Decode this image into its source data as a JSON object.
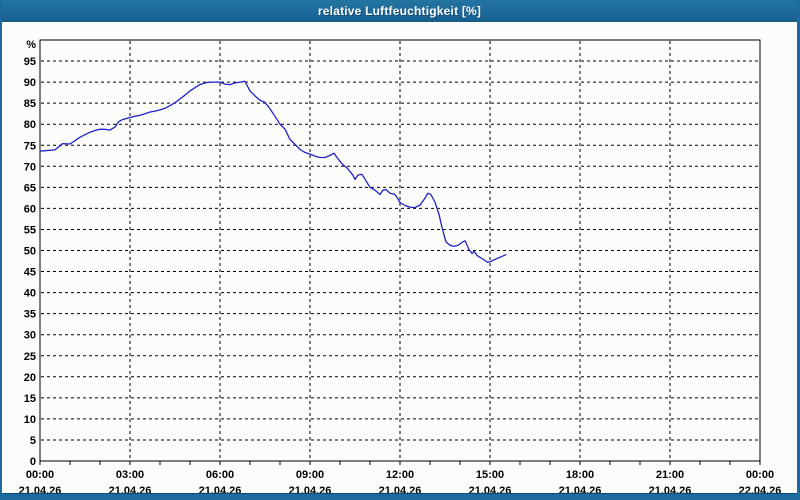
{
  "window": {
    "title": "relative Luftfeuchtigkeit [%]"
  },
  "colors": {
    "titlebar": "#1d6a9e",
    "frame": "#1d6a9e",
    "background": "#fcfdfa",
    "grid": "#000000",
    "plot_border": "#000000",
    "tick_text": "#000000",
    "title_text": "#ffffff",
    "series_line": "#2121c8"
  },
  "chart_data": {
    "type": "line",
    "title": "relative Luftfeuchtigkeit [%]",
    "ylabel": "%",
    "xlabel": "",
    "ylim": [
      0,
      100
    ],
    "xlim_hours": [
      0,
      24
    ],
    "grid": "dashed",
    "legend": "none",
    "yticks": [
      {
        "value": 0,
        "label": "0"
      },
      {
        "value": 5,
        "label": "5"
      },
      {
        "value": 10,
        "label": "10"
      },
      {
        "value": 15,
        "label": "15"
      },
      {
        "value": 20,
        "label": "20"
      },
      {
        "value": 25,
        "label": "25"
      },
      {
        "value": 30,
        "label": "30"
      },
      {
        "value": 35,
        "label": "35"
      },
      {
        "value": 40,
        "label": "40"
      },
      {
        "value": 45,
        "label": "45"
      },
      {
        "value": 50,
        "label": "50"
      },
      {
        "value": 55,
        "label": "55"
      },
      {
        "value": 60,
        "label": "60"
      },
      {
        "value": 65,
        "label": "65"
      },
      {
        "value": 70,
        "label": "70"
      },
      {
        "value": 75,
        "label": "75"
      },
      {
        "value": 80,
        "label": "80"
      },
      {
        "value": 85,
        "label": "85"
      },
      {
        "value": 90,
        "label": "90"
      },
      {
        "value": 95,
        "label": "95"
      }
    ],
    "xticks": [
      {
        "hour": 0,
        "time": "00:00",
        "date": "21.04.26"
      },
      {
        "hour": 3,
        "time": "03:00",
        "date": "21.04.26"
      },
      {
        "hour": 6,
        "time": "06:00",
        "date": "21.04.26"
      },
      {
        "hour": 9,
        "time": "09:00",
        "date": "21.04.26"
      },
      {
        "hour": 12,
        "time": "12:00",
        "date": "21.04.26"
      },
      {
        "hour": 15,
        "time": "15:00",
        "date": "21.04.26"
      },
      {
        "hour": 18,
        "time": "18:00",
        "date": "21.04.26"
      },
      {
        "hour": 21,
        "time": "21:00",
        "date": "21.04.26"
      },
      {
        "hour": 24,
        "time": "00:00",
        "date": "22.04.26"
      }
    ],
    "minor_xtick_every_hours": 1,
    "series": [
      {
        "name": "relative Luftfeuchtigkeit",
        "unit": "%",
        "color": "#2121c8",
        "points": [
          [
            0.0,
            73.6
          ],
          [
            0.17,
            73.7
          ],
          [
            0.33,
            73.8
          ],
          [
            0.5,
            73.9
          ],
          [
            0.62,
            74.6
          ],
          [
            0.75,
            75.4
          ],
          [
            1.0,
            75.3
          ],
          [
            1.17,
            76.1
          ],
          [
            1.33,
            76.9
          ],
          [
            1.5,
            77.5
          ],
          [
            1.67,
            78.1
          ],
          [
            1.83,
            78.5
          ],
          [
            2.0,
            78.8
          ],
          [
            2.17,
            78.8
          ],
          [
            2.33,
            78.6
          ],
          [
            2.5,
            79.3
          ],
          [
            2.62,
            80.6
          ],
          [
            2.75,
            81.1
          ],
          [
            3.0,
            81.6
          ],
          [
            3.17,
            81.9
          ],
          [
            3.33,
            82.1
          ],
          [
            3.5,
            82.5
          ],
          [
            3.67,
            82.9
          ],
          [
            3.83,
            83.1
          ],
          [
            4.0,
            83.4
          ],
          [
            4.17,
            83.8
          ],
          [
            4.33,
            84.4
          ],
          [
            4.5,
            85.1
          ],
          [
            4.67,
            86.0
          ],
          [
            4.83,
            86.9
          ],
          [
            5.0,
            87.9
          ],
          [
            5.17,
            88.7
          ],
          [
            5.33,
            89.4
          ],
          [
            5.5,
            89.8
          ],
          [
            5.67,
            90.0
          ],
          [
            5.83,
            90.0
          ],
          [
            6.0,
            90.0
          ],
          [
            6.17,
            89.5
          ],
          [
            6.33,
            89.4
          ],
          [
            6.5,
            89.8
          ],
          [
            6.67,
            90.0
          ],
          [
            6.83,
            90.2
          ],
          [
            7.0,
            87.9
          ],
          [
            7.17,
            86.7
          ],
          [
            7.33,
            85.7
          ],
          [
            7.5,
            85.2
          ],
          [
            7.67,
            83.6
          ],
          [
            7.83,
            81.9
          ],
          [
            8.0,
            80.0
          ],
          [
            8.17,
            78.8
          ],
          [
            8.33,
            76.4
          ],
          [
            8.5,
            75.2
          ],
          [
            8.67,
            74.0
          ],
          [
            8.83,
            73.3
          ],
          [
            9.0,
            72.9
          ],
          [
            9.17,
            72.4
          ],
          [
            9.33,
            72.1
          ],
          [
            9.5,
            72.1
          ],
          [
            9.67,
            72.6
          ],
          [
            9.8,
            73.1
          ],
          [
            9.92,
            71.9
          ],
          [
            10.08,
            70.5
          ],
          [
            10.25,
            69.5
          ],
          [
            10.42,
            68.0
          ],
          [
            10.5,
            66.9
          ],
          [
            10.6,
            67.9
          ],
          [
            10.73,
            68.1
          ],
          [
            10.83,
            67.0
          ],
          [
            11.0,
            65.0
          ],
          [
            11.17,
            64.3
          ],
          [
            11.33,
            63.3
          ],
          [
            11.43,
            64.3
          ],
          [
            11.53,
            64.5
          ],
          [
            11.67,
            63.6
          ],
          [
            11.83,
            63.3
          ],
          [
            11.92,
            62.4
          ],
          [
            12.0,
            61.4
          ],
          [
            12.17,
            60.7
          ],
          [
            12.33,
            60.3
          ],
          [
            12.5,
            60.2
          ],
          [
            12.67,
            60.8
          ],
          [
            12.83,
            62.4
          ],
          [
            12.93,
            63.6
          ],
          [
            13.03,
            63.3
          ],
          [
            13.17,
            61.4
          ],
          [
            13.3,
            58.6
          ],
          [
            13.4,
            55.5
          ],
          [
            13.53,
            52.1
          ],
          [
            13.67,
            51.2
          ],
          [
            13.8,
            51.0
          ],
          [
            13.93,
            51.2
          ],
          [
            14.08,
            52.0
          ],
          [
            14.17,
            52.3
          ],
          [
            14.3,
            50.2
          ],
          [
            14.4,
            49.3
          ],
          [
            14.47,
            49.8
          ],
          [
            14.57,
            48.8
          ],
          [
            14.73,
            48.1
          ],
          [
            14.93,
            47.2
          ],
          [
            15.03,
            47.4
          ],
          [
            15.2,
            48.0
          ],
          [
            15.37,
            48.5
          ],
          [
            15.53,
            49.0
          ]
        ]
      }
    ]
  }
}
